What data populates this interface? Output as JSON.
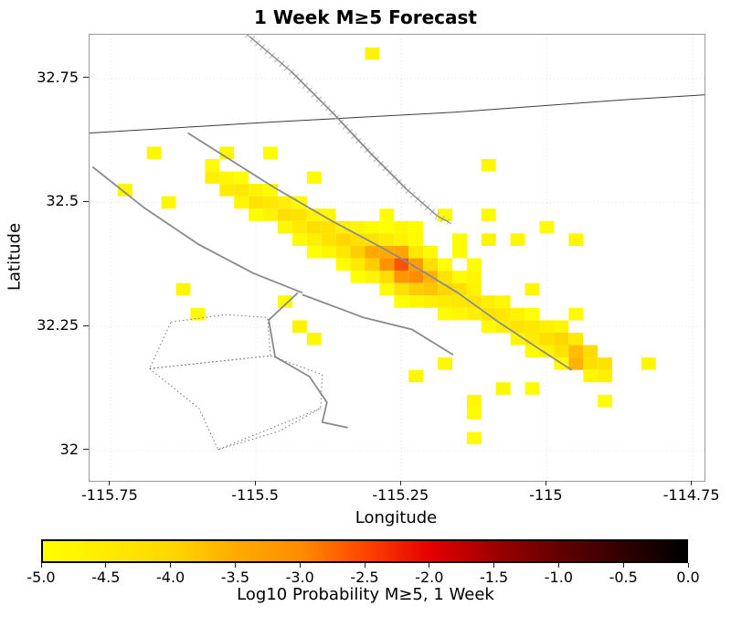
{
  "title": "1 Week M≥5 Forecast",
  "axes": {
    "xlabel": "Longitude",
    "ylabel": "Latitude",
    "x_ticks": [
      -115.75,
      -115.5,
      -115.25,
      -115,
      -114.75
    ],
    "x_tick_labels": [
      "-115.75",
      "-115.5",
      "-115.25",
      "-115",
      "-114.75"
    ],
    "y_ticks": [
      32.75,
      32.5,
      32.25,
      32
    ],
    "y_tick_labels": [
      "32.75",
      "32.5",
      "32.25",
      "32"
    ],
    "xlim": [
      -115.786,
      -114.729
    ],
    "ylim": [
      31.939,
      32.838
    ]
  },
  "colorbar": {
    "label": "Log10 Probability M≥5, 1 Week",
    "ticks": [
      "-5.0",
      "-4.5",
      "-4.0",
      "-3.5",
      "-3.0",
      "-2.5",
      "-2.0",
      "-1.5",
      "-1.0",
      "-0.5",
      "0.0"
    ],
    "stops": [
      {
        "v": -5,
        "color": "#ffff00"
      },
      {
        "v": -4,
        "color": "#ffd700"
      },
      {
        "v": -3.5,
        "color": "#ffaa00"
      },
      {
        "v": -3,
        "color": "#ff8c00"
      },
      {
        "v": -2.5,
        "color": "#ff4500"
      },
      {
        "v": -2,
        "color": "#e60000"
      },
      {
        "v": -1.5,
        "color": "#a00000"
      },
      {
        "v": -1,
        "color": "#640000"
      },
      {
        "v": -0.5,
        "color": "#320000"
      },
      {
        "v": 0,
        "color": "#000000"
      }
    ]
  },
  "chart_data": {
    "type": "heatmap",
    "title": "1 Week M≥5 Forecast",
    "xlabel": "Longitude",
    "ylabel": "Latitude",
    "value_label": "Log10 Probability M≥5, 1 Week",
    "value_range": [
      -5,
      0
    ],
    "grid": {
      "lon0": -115.75,
      "lat0": 32.0,
      "dlon": 0.025,
      "dlat": 0.025
    },
    "cells": [
      [
        18,
        32,
        -4.7
      ],
      [
        3,
        24,
        -4.8
      ],
      [
        11,
        24,
        -4.9
      ],
      [
        8,
        24,
        -4.8
      ],
      [
        26,
        23,
        -4.8
      ],
      [
        1,
        21,
        -4.8
      ],
      [
        4,
        20,
        -4.8
      ],
      [
        14,
        22,
        -4.9
      ],
      [
        23,
        19,
        -4.9
      ],
      [
        26,
        19,
        -4.9
      ],
      [
        5,
        13,
        -4.8
      ],
      [
        6,
        11,
        -4.9
      ],
      [
        12,
        12,
        -4.9
      ],
      [
        13,
        10,
        -4.7
      ],
      [
        14,
        9,
        -4.8
      ],
      [
        26,
        17,
        -4.7
      ],
      [
        28,
        17,
        -4.8
      ],
      [
        30,
        18,
        -4.9
      ],
      [
        32,
        17,
        -4.8
      ],
      [
        25,
        14,
        -4.8
      ],
      [
        29,
        13,
        -4.8
      ],
      [
        32,
        11,
        -4.9
      ],
      [
        34,
        4,
        -4.9
      ],
      [
        37,
        7,
        -4.8
      ],
      [
        25,
        4,
        -4.8
      ],
      [
        25,
        3,
        -4.9
      ],
      [
        25,
        1,
        -4.9
      ],
      [
        21,
        6,
        -4.8
      ],
      [
        23,
        7,
        -4.8
      ],
      [
        27,
        5,
        -4.8
      ],
      [
        29,
        5,
        -4.9
      ],
      [
        7,
        22,
        -4.6
      ],
      [
        7,
        23,
        -4.9
      ],
      [
        8,
        21,
        -4.5
      ],
      [
        8,
        22,
        -4.8
      ],
      [
        9,
        21,
        -4.4
      ],
      [
        9,
        20,
        -4.8
      ],
      [
        9,
        22,
        -5.0
      ],
      [
        10,
        20,
        -4.3
      ],
      [
        10,
        21,
        -4.7
      ],
      [
        10,
        19,
        -4.9
      ],
      [
        11,
        20,
        -4.4
      ],
      [
        11,
        19,
        -4.7
      ],
      [
        11,
        21,
        -4.9
      ],
      [
        12,
        19,
        -4.2
      ],
      [
        12,
        20,
        -4.6
      ],
      [
        12,
        18,
        -4.8
      ],
      [
        13,
        19,
        -4.3
      ],
      [
        13,
        18,
        -4.5
      ],
      [
        13,
        17,
        -4.9
      ],
      [
        13,
        20,
        -4.9
      ],
      [
        14,
        18,
        -4.2
      ],
      [
        14,
        17,
        -4.6
      ],
      [
        14,
        19,
        -4.7
      ],
      [
        14,
        16,
        -5.0
      ],
      [
        15,
        18,
        -4.3
      ],
      [
        15,
        17,
        -4.3
      ],
      [
        15,
        16,
        -4.8
      ],
      [
        15,
        19,
        -4.8
      ],
      [
        16,
        17,
        -4.0
      ],
      [
        16,
        16,
        -4.4
      ],
      [
        16,
        18,
        -4.6
      ],
      [
        16,
        15,
        -4.9
      ],
      [
        17,
        16,
        -3.9
      ],
      [
        17,
        17,
        -4.2
      ],
      [
        17,
        15,
        -4.5
      ],
      [
        17,
        18,
        -4.8
      ],
      [
        17,
        14,
        -5.0
      ],
      [
        18,
        16,
        -3.5
      ],
      [
        18,
        15,
        -3.9
      ],
      [
        18,
        17,
        -4.3
      ],
      [
        18,
        14,
        -4.7
      ],
      [
        18,
        18,
        -4.9
      ],
      [
        19,
        15,
        -3.1
      ],
      [
        19,
        16,
        -3.5
      ],
      [
        19,
        14,
        -4.1
      ],
      [
        19,
        17,
        -4.5
      ],
      [
        19,
        13,
        -4.9
      ],
      [
        19,
        18,
        -5.0
      ],
      [
        19,
        19,
        -4.9
      ],
      [
        20,
        15,
        -2.6
      ],
      [
        20,
        14,
        -3.2
      ],
      [
        20,
        16,
        -3.4
      ],
      [
        20,
        13,
        -4.2
      ],
      [
        20,
        17,
        -4.7
      ],
      [
        20,
        18,
        -4.8
      ],
      [
        20,
        12,
        -5.0
      ],
      [
        21,
        14,
        -3.0
      ],
      [
        21,
        15,
        -3.3
      ],
      [
        21,
        13,
        -3.9
      ],
      [
        21,
        16,
        -4.4
      ],
      [
        21,
        12,
        -4.8
      ],
      [
        21,
        18,
        -4.9
      ],
      [
        21,
        17,
        -4.9
      ],
      [
        22,
        14,
        -3.6
      ],
      [
        22,
        13,
        -3.8
      ],
      [
        22,
        15,
        -4.2
      ],
      [
        22,
        12,
        -4.6
      ],
      [
        22,
        16,
        -4.9
      ],
      [
        23,
        13,
        -4.0
      ],
      [
        23,
        14,
        -4.3
      ],
      [
        23,
        12,
        -4.5
      ],
      [
        23,
        11,
        -4.9
      ],
      [
        23,
        15,
        -5.0
      ],
      [
        24,
        13,
        -4.2
      ],
      [
        24,
        12,
        -4.4
      ],
      [
        24,
        11,
        -4.8
      ],
      [
        24,
        14,
        -4.9
      ],
      [
        24,
        16,
        -4.9
      ],
      [
        24,
        17,
        -4.9
      ],
      [
        25,
        12,
        -4.3
      ],
      [
        25,
        11,
        -4.6
      ],
      [
        25,
        13,
        -4.7
      ],
      [
        25,
        15,
        -4.9
      ],
      [
        26,
        11,
        -4.3
      ],
      [
        26,
        12,
        -4.6
      ],
      [
        26,
        10,
        -4.9
      ],
      [
        27,
        11,
        -4.4
      ],
      [
        27,
        10,
        -4.6
      ],
      [
        27,
        12,
        -4.8
      ],
      [
        28,
        10,
        -4.3
      ],
      [
        28,
        11,
        -4.7
      ],
      [
        28,
        9,
        -4.8
      ],
      [
        29,
        10,
        -4.4
      ],
      [
        29,
        9,
        -4.5
      ],
      [
        29,
        8,
        -4.9
      ],
      [
        29,
        11,
        -5.0
      ],
      [
        30,
        9,
        -4.2
      ],
      [
        30,
        10,
        -4.6
      ],
      [
        30,
        8,
        -4.7
      ],
      [
        31,
        9,
        -4.0
      ],
      [
        31,
        8,
        -4.3
      ],
      [
        31,
        10,
        -4.8
      ],
      [
        31,
        7,
        -4.9
      ],
      [
        32,
        8,
        -3.7
      ],
      [
        32,
        7,
        -3.6
      ],
      [
        32,
        9,
        -4.5
      ],
      [
        33,
        8,
        -4.1
      ],
      [
        33,
        7,
        -4.2
      ],
      [
        33,
        6,
        -4.8
      ],
      [
        34,
        7,
        -4.3
      ],
      [
        34,
        6,
        -4.6
      ]
    ],
    "fault_lines": [
      {
        "name": "border-line",
        "style": "thin",
        "points": [
          [
            -115.786,
            32.64
          ],
          [
            -115.472,
            32.662
          ],
          [
            -115.158,
            32.682
          ],
          [
            -114.855,
            32.708
          ],
          [
            -114.729,
            32.717
          ]
        ]
      },
      {
        "name": "hatched-fault",
        "style": "hatched",
        "points": [
          [
            -115.515,
            32.838
          ],
          [
            -115.441,
            32.765
          ],
          [
            -115.37,
            32.682
          ],
          [
            -115.307,
            32.603
          ],
          [
            -115.244,
            32.529
          ],
          [
            -115.19,
            32.474
          ],
          [
            -115.169,
            32.461
          ]
        ]
      },
      {
        "name": "fault-a",
        "style": "solid",
        "points": [
          [
            -115.617,
            32.64
          ],
          [
            -115.467,
            32.529
          ],
          [
            -115.373,
            32.465
          ],
          [
            -115.279,
            32.406
          ],
          [
            -115.224,
            32.369
          ],
          [
            -115.153,
            32.318
          ],
          [
            -115.083,
            32.259
          ],
          [
            -115.012,
            32.204
          ],
          [
            -114.957,
            32.162
          ]
        ]
      },
      {
        "name": "fault-b",
        "style": "solid",
        "points": [
          [
            -115.781,
            32.572
          ],
          [
            -115.692,
            32.489
          ],
          [
            -115.598,
            32.415
          ],
          [
            -115.504,
            32.357
          ],
          [
            -115.42,
            32.318
          ]
        ]
      },
      {
        "name": "fault-b2",
        "style": "solid",
        "points": [
          [
            -115.42,
            32.314
          ],
          [
            -115.315,
            32.268
          ],
          [
            -115.232,
            32.244
          ],
          [
            -115.161,
            32.193
          ]
        ]
      },
      {
        "name": "fault-c",
        "style": "solid",
        "points": [
          [
            -115.428,
            32.318
          ],
          [
            -115.478,
            32.263
          ],
          [
            -115.467,
            32.189
          ],
          [
            -115.408,
            32.149
          ],
          [
            -115.378,
            32.097
          ],
          [
            -115.386,
            32.057
          ],
          [
            -115.342,
            32.046
          ]
        ]
      },
      {
        "name": "dotted-outline-1",
        "style": "dotted",
        "points": [
          [
            -115.646,
            32.259
          ],
          [
            -115.551,
            32.274
          ],
          [
            -115.48,
            32.268
          ],
          [
            -115.475,
            32.191
          ],
          [
            -115.683,
            32.165
          ],
          [
            -115.646,
            32.259
          ]
        ]
      },
      {
        "name": "dotted-outline-2",
        "style": "dotted",
        "points": [
          [
            -115.683,
            32.165
          ],
          [
            -115.475,
            32.191
          ],
          [
            -115.386,
            32.153
          ],
          [
            -115.389,
            32.085
          ],
          [
            -115.565,
            32.002
          ],
          [
            -115.598,
            32.085
          ],
          [
            -115.683,
            32.165
          ]
        ]
      },
      {
        "name": "dotted-inner",
        "style": "dotted",
        "points": [
          [
            -115.565,
            32.002
          ],
          [
            -115.46,
            32.039
          ],
          [
            -115.389,
            32.085
          ]
        ]
      }
    ]
  }
}
